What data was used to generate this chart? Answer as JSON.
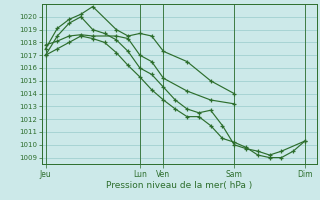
{
  "xlabel": "Pression niveau de la mer( hPa )",
  "background_color": "#cce9e9",
  "grid_color": "#99cccc",
  "line_color": "#2d6e2d",
  "ylim": [
    1008.5,
    1021.0
  ],
  "yticks": [
    1009,
    1010,
    1011,
    1012,
    1013,
    1014,
    1015,
    1016,
    1017,
    1018,
    1019,
    1020
  ],
  "x_tick_labels": [
    "Jeu",
    "Lun",
    "Ven",
    "Sam",
    "Dim"
  ],
  "x_tick_positions": [
    0,
    48,
    60,
    96,
    132
  ],
  "xlim": [
    -2,
    138
  ],
  "series": [
    {
      "x": [
        0,
        6,
        12,
        18,
        24,
        36,
        42,
        48,
        54,
        60,
        72,
        84,
        96
      ],
      "y": [
        1017.5,
        1019.1,
        1019.8,
        1020.2,
        1020.8,
        1019.0,
        1018.5,
        1018.7,
        1018.5,
        1017.3,
        1016.5,
        1015.0,
        1014.0
      ]
    },
    {
      "x": [
        0,
        6,
        12,
        18,
        24,
        36,
        42,
        48,
        54,
        60,
        72,
        84,
        96
      ],
      "y": [
        1017.8,
        1018.1,
        1018.5,
        1018.6,
        1018.5,
        1018.5,
        1018.3,
        1017.0,
        1016.5,
        1015.2,
        1014.2,
        1013.5,
        1013.2
      ]
    },
    {
      "x": [
        0,
        6,
        12,
        18,
        24,
        30,
        36,
        42,
        48,
        54,
        60,
        66,
        72,
        78,
        84,
        90,
        96,
        102,
        108,
        114,
        120,
        132
      ],
      "y": [
        1017.0,
        1018.5,
        1019.5,
        1020.0,
        1019.0,
        1018.7,
        1018.2,
        1017.3,
        1016.0,
        1015.5,
        1014.5,
        1013.5,
        1012.8,
        1012.5,
        1012.7,
        1011.5,
        1010.0,
        1009.7,
        1009.5,
        1009.2,
        1009.5,
        1010.3
      ]
    },
    {
      "x": [
        0,
        6,
        12,
        18,
        24,
        30,
        36,
        42,
        48,
        54,
        60,
        66,
        72,
        78,
        84,
        90,
        96,
        102,
        108,
        114,
        120,
        126,
        132
      ],
      "y": [
        1017.0,
        1017.5,
        1018.0,
        1018.5,
        1018.3,
        1018.0,
        1017.2,
        1016.2,
        1015.3,
        1014.3,
        1013.5,
        1012.8,
        1012.2,
        1012.2,
        1011.5,
        1010.5,
        1010.2,
        1009.8,
        1009.2,
        1009.0,
        1009.0,
        1009.5,
        1010.3
      ]
    }
  ]
}
